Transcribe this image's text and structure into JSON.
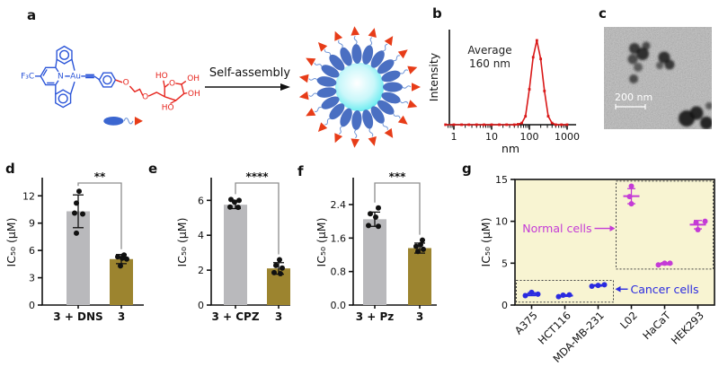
{
  "panels": {
    "a": {
      "label": "a",
      "self_assembly_label": "Self-assembly",
      "structure_atoms": {
        "f3c": "F₃C",
        "n": "N",
        "au": "Au",
        "o_ether": "O",
        "o_glycosidic": "O",
        "o_ring": "O",
        "ho_top": "HO",
        "oh_right_top": "OH",
        "oh_right_bottom": "OH",
        "ho_bottom": "HO"
      },
      "colors": {
        "complex_blue": "#2b55d8",
        "sugar_red": "#e6251e",
        "micelle_shell": "#4a6fc2",
        "micelle_core_edge": "#3fd9e8",
        "arrow_red": "#e73c18",
        "squiggle": "#6e94d6"
      }
    },
    "b": {
      "label": "b"
    },
    "c": {
      "label": "c",
      "scale_bar": "200 nm"
    },
    "d": {
      "label": "d"
    },
    "e": {
      "label": "e"
    },
    "f": {
      "label": "f"
    },
    "g": {
      "label": "g"
    }
  },
  "chart_data": [
    {
      "id": "b",
      "type": "line",
      "title": "",
      "xlabel": "nm",
      "ylabel": "Intensity",
      "xscale": "log",
      "xticks": [
        1,
        10,
        100,
        1000
      ],
      "annotation": [
        "Average",
        "160 nm"
      ],
      "line_color": "#d91818",
      "x": [
        0.6,
        1,
        1.6,
        2.5,
        4,
        6.3,
        10,
        16,
        25,
        40,
        50,
        63,
        79,
        100,
        126,
        158,
        200,
        251,
        316,
        398,
        501,
        708,
        1000
      ],
      "y": [
        0,
        0,
        0,
        0,
        0,
        0,
        0,
        0,
        0,
        0,
        0.005,
        0.02,
        0.1,
        0.42,
        0.8,
        1.0,
        0.78,
        0.4,
        0.1,
        0.02,
        0,
        0,
        0
      ],
      "peak_nm": 160
    },
    {
      "id": "d",
      "type": "bar",
      "ylabel": "IC₅₀ (μM)",
      "yticks": [
        "0",
        "3",
        "6",
        "9",
        "12"
      ],
      "ytick_values": [
        0,
        3,
        6,
        9,
        12
      ],
      "ymax": 13.8,
      "significance": "**",
      "bars": [
        {
          "label": "3 + DNS",
          "mean": 10.3,
          "sd": 1.8,
          "color": "#b9b9bc",
          "points": [
            [
              1,
              12.5
            ],
            [
              -2,
              11.2
            ],
            [
              -4,
              10.1
            ],
            [
              5,
              10.0
            ],
            [
              -2,
              7.9
            ]
          ]
        },
        {
          "label": "3",
          "mean": 5.05,
          "sd": 0.5,
          "color": "#9c842f",
          "points": [
            [
              3,
              5.5
            ],
            [
              -4,
              5.3
            ],
            [
              1,
              5.15
            ],
            [
              6,
              5.05
            ],
            [
              -1,
              4.3
            ]
          ]
        }
      ]
    },
    {
      "id": "e",
      "type": "bar",
      "ylabel": "IC₅₀ (μM)",
      "yticks": [
        "0",
        "2",
        "4",
        "6"
      ],
      "ytick_values": [
        0,
        2,
        4,
        6
      ],
      "ymax": 7.2,
      "significance": "****",
      "bars": [
        {
          "label": "3 + CPZ",
          "mean": 5.75,
          "sd": 0.22,
          "color": "#b9b9bc",
          "points": [
            [
              -5,
              6.05
            ],
            [
              4,
              6.0
            ],
            [
              -1,
              5.9
            ],
            [
              -6,
              5.62
            ],
            [
              3,
              5.6
            ]
          ]
        },
        {
          "label": "3",
          "mean": 2.1,
          "sd": 0.33,
          "color": "#9c842f",
          "points": [
            [
              1,
              2.6
            ],
            [
              -3,
              2.27
            ],
            [
              4,
              2.12
            ],
            [
              -5,
              1.86
            ],
            [
              2,
              1.8
            ]
          ]
        }
      ]
    },
    {
      "id": "f",
      "type": "bar",
      "ylabel": "IC₅₀ (μM)",
      "yticks": [
        "0.0",
        "0.8",
        "1.6",
        "2.4"
      ],
      "ytick_values": [
        0,
        0.8,
        1.6,
        2.4
      ],
      "ymax": 3.0,
      "significance": "***",
      "bars": [
        {
          "label": "3 + Pz",
          "mean": 2.05,
          "sd": 0.17,
          "color": "#b9b9bc",
          "points": [
            [
              4,
              2.32
            ],
            [
              -5,
              2.18
            ],
            [
              1,
              2.1
            ],
            [
              -7,
              1.9
            ],
            [
              4,
              1.88
            ]
          ]
        },
        {
          "label": "3",
          "mean": 1.36,
          "sd": 0.12,
          "color": "#9c842f",
          "points": [
            [
              3,
              1.55
            ],
            [
              1,
              1.44
            ],
            [
              -4,
              1.4
            ],
            [
              4,
              1.33
            ],
            [
              -2,
              1.28
            ]
          ]
        }
      ]
    },
    {
      "id": "g",
      "type": "scatter",
      "ylabel": "IC₅₀ (μM)",
      "yticks": [
        "0",
        "5",
        "10",
        "15"
      ],
      "ytick_values": [
        0,
        5,
        10,
        15
      ],
      "ymax": 15,
      "plot_bg": "#f8f4d2",
      "groups": [
        {
          "label": "A375",
          "category": "cancer",
          "color": "#2a2ae0",
          "mean": 1.3,
          "sd": 0.18,
          "points": [
            [
              -7,
              1.12
            ],
            [
              0,
              1.52
            ],
            [
              7,
              1.3
            ]
          ]
        },
        {
          "label": "HCT116",
          "category": "cancer",
          "color": "#2a2ae0",
          "mean": 1.13,
          "sd": 0.1,
          "points": [
            [
              -7,
              1.0
            ],
            [
              -2,
              1.18
            ],
            [
              5,
              1.22
            ]
          ]
        },
        {
          "label": "MDA-MB-231",
          "category": "cancer",
          "color": "#2a2ae0",
          "mean": 2.34,
          "sd": 0.08,
          "points": [
            [
              -7,
              2.25
            ],
            [
              0,
              2.35
            ],
            [
              7,
              2.42
            ]
          ]
        },
        {
          "label": "L02",
          "category": "normal",
          "color": "#c43bd6",
          "mean": 13.0,
          "sd": 0.9,
          "points": [
            [
              0,
              14.2
            ],
            [
              -2,
              12.95
            ],
            [
              0,
              12.1
            ]
          ]
        },
        {
          "label": "HaCaT",
          "category": "normal",
          "color": "#c43bd6",
          "mean": 4.93,
          "sd": 0.12,
          "points": [
            [
              -7,
              4.8
            ],
            [
              0,
              5.0
            ],
            [
              6,
              5.0
            ]
          ]
        },
        {
          "label": "HEK293",
          "category": "normal",
          "color": "#c43bd6",
          "mean": 9.6,
          "sd": 0.5,
          "points": [
            [
              8,
              10.0
            ],
            [
              -2,
              9.85
            ],
            [
              0,
              9.0
            ]
          ]
        }
      ],
      "annotations": [
        {
          "text": "Normal cells",
          "color": "#c43bd6",
          "target": "normal",
          "y": 9.15
        },
        {
          "text": "Cancer cells",
          "color": "#2a2ae0",
          "target": "cancer",
          "y": 1.9
        }
      ],
      "boxes": [
        {
          "group_start": 0,
          "group_end": 2,
          "y0": 0.35,
          "y1": 2.95
        },
        {
          "group_start": 3,
          "group_end": 5,
          "y0": 4.3,
          "y1": 14.8
        }
      ]
    }
  ]
}
